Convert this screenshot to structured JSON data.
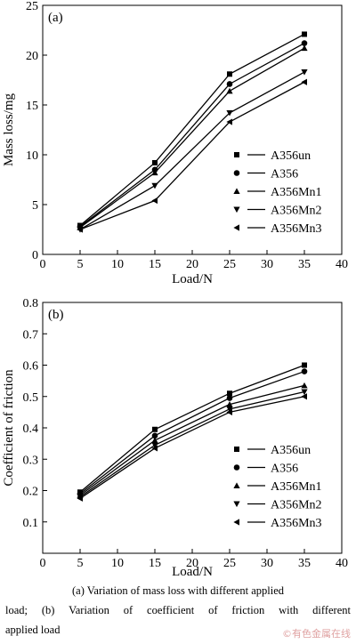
{
  "chart_data": [
    {
      "type": "line",
      "panel_label": "(a)",
      "xlabel": "Load/N",
      "ylabel": "Mass loss/mg",
      "xlim": [
        0,
        40
      ],
      "ylim": [
        0,
        25
      ],
      "xticks": [
        0,
        5,
        10,
        15,
        20,
        25,
        30,
        35,
        40
      ],
      "yticks": [
        0,
        5,
        10,
        15,
        20,
        25
      ],
      "x": [
        5,
        15,
        25,
        35
      ],
      "legend_position": "bottom-right",
      "series": [
        {
          "name": "A356un",
          "marker": "square",
          "values": [
            2.9,
            9.2,
            18.1,
            22.1
          ]
        },
        {
          "name": "A356",
          "marker": "circle",
          "values": [
            2.8,
            8.5,
            17.1,
            21.2
          ]
        },
        {
          "name": "A356Mn1",
          "marker": "triangle-up",
          "values": [
            2.7,
            8.2,
            16.4,
            20.7
          ]
        },
        {
          "name": "A356Mn2",
          "marker": "triangle-down",
          "values": [
            2.5,
            6.9,
            14.2,
            18.3
          ]
        },
        {
          "name": "A356Mn3",
          "marker": "triangle-left",
          "values": [
            2.5,
            5.4,
            13.3,
            17.3
          ]
        }
      ]
    },
    {
      "type": "line",
      "panel_label": "(b)",
      "xlabel": "Load/N",
      "ylabel": "Coefficient of friction",
      "xlim": [
        0,
        40
      ],
      "ylim": [
        0,
        0.8
      ],
      "xticks": [
        0,
        5,
        10,
        15,
        20,
        25,
        30,
        35,
        40
      ],
      "yticks": [
        0.1,
        0.2,
        0.3,
        0.4,
        0.5,
        0.6,
        0.7,
        0.8
      ],
      "x": [
        5,
        15,
        25,
        35
      ],
      "legend_position": "bottom-right",
      "series": [
        {
          "name": "A356un",
          "marker": "square",
          "values": [
            0.195,
            0.395,
            0.51,
            0.6
          ]
        },
        {
          "name": "A356",
          "marker": "circle",
          "values": [
            0.19,
            0.375,
            0.495,
            0.58
          ]
        },
        {
          "name": "A356Mn1",
          "marker": "triangle-up",
          "values": [
            0.185,
            0.36,
            0.475,
            0.535
          ]
        },
        {
          "name": "A356Mn2",
          "marker": "triangle-down",
          "values": [
            0.18,
            0.345,
            0.46,
            0.515
          ]
        },
        {
          "name": "A356Mn3",
          "marker": "triangle-left",
          "values": [
            0.175,
            0.335,
            0.45,
            0.5
          ]
        }
      ]
    }
  ],
  "caption": {
    "line1": "(a) Variation of mass loss with different applied",
    "line2": "load; (b) Variation of coefficient of friction with different",
    "line3": "applied load"
  },
  "watermark": "©有色金属在线"
}
